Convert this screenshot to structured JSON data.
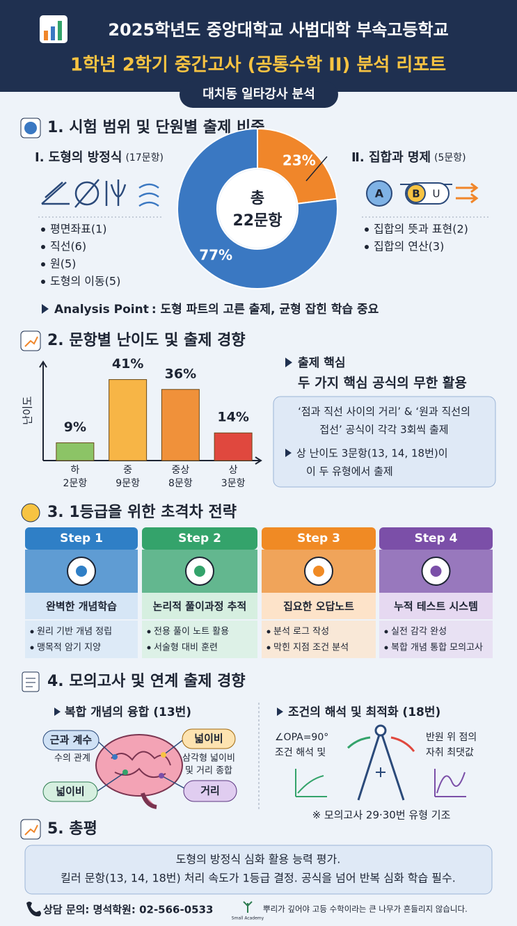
{
  "header": {
    "title_line1": "2025학년도 중앙대학교 사범대학 부속고등학교",
    "title_line2": "1학년 2학기 중간고사 (공통수학 II) 분석 리포트",
    "subtitle": "대치동 일타강사 분석"
  },
  "section1": {
    "heading": "1. 시험 범위 및 단원별 출제 비중",
    "left": {
      "title": "Ⅰ. 도형의 방정식",
      "count": "(17문항)",
      "items": [
        "평면좌표(1)",
        "직선(6)",
        "원(5)",
        "도형의 이동(5)"
      ]
    },
    "right": {
      "title": "Ⅱ. 집합과 명제",
      "count": "(5문항)",
      "icons": [
        "A",
        "B",
        "U"
      ],
      "items": [
        "집합의 뜻과 표현(2)",
        "집합의 연산(3)"
      ]
    },
    "chart": {
      "type": "pie",
      "center_label": [
        "총",
        "22문항"
      ],
      "values": [
        23,
        77
      ],
      "value_labels": [
        "23%",
        "77%"
      ],
      "colors": [
        "#f0862a",
        "#3a78c2"
      ]
    },
    "analysis": {
      "label": "Analysis Point",
      "text": ": 도형 파트의 고른 출제, 균형 잡힌 학습 중요"
    }
  },
  "section2": {
    "heading": "2. 문항별 난이도 및 출제 경향",
    "chart": {
      "type": "bar",
      "y_label": "난이도",
      "categories": [
        "하",
        "중",
        "중상",
        "상"
      ],
      "counts": [
        "2문항",
        "9문항",
        "8문항",
        "3문항"
      ],
      "values": [
        9,
        41,
        36,
        14
      ],
      "value_labels": [
        "9%",
        "41%",
        "36%",
        "14%"
      ],
      "colors": [
        "#8cc466",
        "#f7b546",
        "#f0913a",
        "#e0483e"
      ],
      "ylim": [
        0,
        50
      ]
    },
    "core_label": "출제 핵심",
    "core_text": "두 가지 핵심 공식의 무한 활용",
    "box_lines": [
      "‘점과 직선 사이의 거리’ & ‘원과 직선의",
      "접선’ 공식이 각각 3회씩 출제"
    ],
    "box_point": [
      "상 난이도 3문항(13, 14, 18번)이",
      "이 두 유형에서 출제"
    ]
  },
  "section3": {
    "heading": "3. 1등급을 위한 초격차 전략",
    "steps": [
      {
        "label": "Step 1",
        "title": "완벽한 개념학습",
        "items": [
          "원리 기반 개념 정립",
          "맹목적 암기 지양"
        ],
        "color": "#2f7fc6",
        "light": "#d6e6f6"
      },
      {
        "label": "Step 2",
        "title": "논리적 풀이과정 추적",
        "items": [
          "전용 풀이 노트 활용",
          "서술형 대비 훈련"
        ],
        "color": "#34a36b",
        "light": "#d6efe0"
      },
      {
        "label": "Step 3",
        "title": "집요한 오답노트",
        "items": [
          "분석 로그 작성",
          "막힌 지점 조건 분석"
        ],
        "color": "#f08a24",
        "light": "#fde3c9"
      },
      {
        "label": "Step 4",
        "title": "누적 테스트 시스템",
        "items": [
          "실전 감각 완성",
          "복합 개념 통합 모의고사"
        ],
        "color": "#7b4fa8",
        "light": "#e6d9f1"
      }
    ]
  },
  "section4": {
    "heading": "4. 모의고사 및 연계 출제 경향",
    "left": {
      "title": "복합 개념의 융합 (13번)",
      "tag1": "근과 계수",
      "tag1_note": "수의 관계",
      "tag2": "넓이비",
      "tag2_note": [
        "삼각형 넓이비",
        "및 거리 종합"
      ],
      "tag3": "넓이비",
      "tag4": "거리"
    },
    "right": {
      "title": "조건의 해석 및 최적화 (18번)",
      "note_left": [
        "∠OPA=90°",
        "조건 해석 및"
      ],
      "note_right": [
        "반원 위 점의",
        "자취 최댓값"
      ]
    },
    "footnote": "※ 모의고사 29·30번 유형 기조"
  },
  "section5": {
    "heading": "5. 총평",
    "lines": [
      "도형의 방정식 심화 활용 능력 평가.",
      "킬러 문항(13, 14, 18번) 처리 속도가 1등급 결정. 공식을 넘어 반복 심화 학습 필수."
    ]
  },
  "footer": {
    "contact": "상담 문의: 명석학원: 02-566-0533",
    "logo": "Small Academy",
    "motto": "뿌리가 깊어야 고등 수학이라는 큰 나무가 흔들리지 않습니다."
  }
}
